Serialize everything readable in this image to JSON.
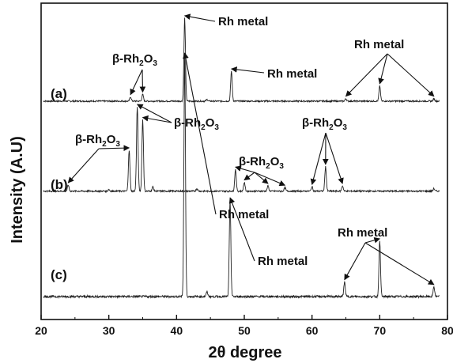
{
  "chart_data": {
    "type": "line",
    "xlabel": "2θ degree",
    "ylabel": "Intensity (A.U)",
    "xlim": [
      20,
      80
    ],
    "xticks": [
      "20",
      "30",
      "40",
      "50",
      "60",
      "70",
      "80"
    ],
    "yticks": "none",
    "grid": false,
    "series": [
      {
        "name": "(a)",
        "baseline": 0.02,
        "peaks": [
          {
            "x": 33.2,
            "y": 0.05
          },
          {
            "x": 35.0,
            "y": 0.08
          },
          {
            "x": 41.2,
            "y": 1.0
          },
          {
            "x": 44.5,
            "y": 0.02
          },
          {
            "x": 48.1,
            "y": 0.36
          },
          {
            "x": 65.0,
            "y": 0.03
          },
          {
            "x": 70.0,
            "y": 0.18
          },
          {
            "x": 78.0,
            "y": 0.03
          }
        ]
      },
      {
        "name": "(b)",
        "baseline": 0.03,
        "peaks": [
          {
            "x": 24.0,
            "y": 0.07
          },
          {
            "x": 30.0,
            "y": 0.02
          },
          {
            "x": 33.0,
            "y": 0.47
          },
          {
            "x": 34.2,
            "y": 0.97
          },
          {
            "x": 35.0,
            "y": 0.82
          },
          {
            "x": 36.5,
            "y": 0.05
          },
          {
            "x": 43.0,
            "y": 0.03
          },
          {
            "x": 48.7,
            "y": 0.25
          },
          {
            "x": 50.0,
            "y": 0.1
          },
          {
            "x": 53.5,
            "y": 0.06
          },
          {
            "x": 56.0,
            "y": 0.04
          },
          {
            "x": 60.0,
            "y": 0.05
          },
          {
            "x": 62.0,
            "y": 0.28
          },
          {
            "x": 64.5,
            "y": 0.06
          },
          {
            "x": 78.0,
            "y": 0.03
          }
        ]
      },
      {
        "name": "(c)",
        "baseline": 0.0,
        "peaks": [
          {
            "x": 41.2,
            "y": 1.0
          },
          {
            "x": 44.5,
            "y": 0.02
          },
          {
            "x": 47.9,
            "y": 0.4
          },
          {
            "x": 64.8,
            "y": 0.06
          },
          {
            "x": 70.0,
            "y": 0.23
          },
          {
            "x": 78.0,
            "y": 0.04
          }
        ]
      }
    ],
    "annotations": [
      {
        "text": "Rh metal",
        "series": "(a)",
        "points_to": [
          41.2
        ]
      },
      {
        "text": "Rh metal",
        "series": "(a)",
        "points_to": [
          48.1
        ]
      },
      {
        "text": "Rh metal",
        "series": "(a)",
        "points_to": [
          65.0,
          70.0,
          78.0
        ]
      },
      {
        "text": "β-Rh2O3",
        "series": "(a)",
        "points_to": [
          33.2,
          35.0
        ]
      },
      {
        "text": "β-Rh2O3",
        "series": "(b)",
        "points_to": [
          24.0,
          33.0
        ]
      },
      {
        "text": "β-Rh2O3",
        "series": "(b)",
        "points_to": [
          34.2,
          35.0
        ]
      },
      {
        "text": "β-Rh2O3",
        "series": "(b)",
        "points_to": [
          48.7,
          50.0,
          53.5,
          56.0
        ]
      },
      {
        "text": "β-Rh2O3",
        "series": "(b)",
        "points_to": [
          60.0,
          62.0,
          64.5
        ]
      },
      {
        "text": "Rh metal",
        "series": "(c)",
        "points_to": [
          41.2
        ]
      },
      {
        "text": "Rh metal",
        "series": "(c)",
        "points_to": [
          47.9
        ]
      },
      {
        "text": "Rh metal",
        "series": "(c)",
        "points_to": [
          64.8,
          70.0,
          78.0
        ]
      }
    ]
  }
}
